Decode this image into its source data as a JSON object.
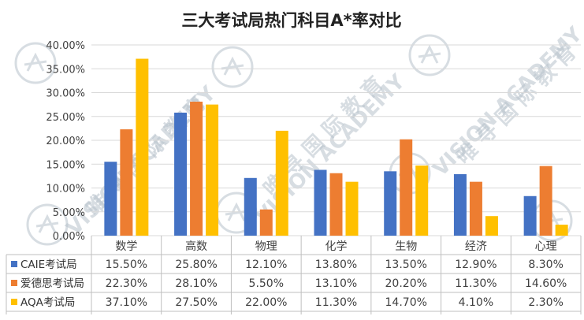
{
  "chart_data": {
    "type": "bar",
    "title": "三大考试局热门科目A*率对比",
    "categories": [
      "数学",
      "高数",
      "物理",
      "化学",
      "生物",
      "经济",
      "心理"
    ],
    "series": [
      {
        "name": "CAIE考试局",
        "color": "#4472C4",
        "values": [
          15.5,
          25.8,
          12.1,
          13.8,
          13.5,
          12.9,
          8.3
        ],
        "labels": [
          "15.50%",
          "25.80%",
          "12.10%",
          "13.80%",
          "13.50%",
          "12.90%",
          "8.30%"
        ]
      },
      {
        "name": "爱德思考试局",
        "color": "#ED7D31",
        "values": [
          22.3,
          28.1,
          5.5,
          13.1,
          20.2,
          11.3,
          14.6
        ],
        "labels": [
          "22.30%",
          "28.10%",
          "5.50%",
          "13.10%",
          "20.20%",
          "11.30%",
          "14.60%"
        ]
      },
      {
        "name": "AQA考试局",
        "color": "#FFC000",
        "values": [
          37.1,
          27.5,
          22.0,
          11.3,
          14.7,
          4.1,
          2.3
        ],
        "labels": [
          "37.10%",
          "27.50%",
          "22.00%",
          "11.30%",
          "14.70%",
          "4.10%",
          "2.30%"
        ]
      }
    ],
    "ylim": [
      0,
      40
    ],
    "yticks": [
      "0.00%",
      "5.00%",
      "10.00%",
      "15.00%",
      "20.00%",
      "25.00%",
      "30.00%",
      "35.00%",
      "40.00%"
    ],
    "grid": true,
    "legend": "data-table"
  },
  "watermark": {
    "text": "VISION ACADEMY",
    "text_cn": "唯 寻 国 际 教 育",
    "color": "#b8c2cc"
  }
}
